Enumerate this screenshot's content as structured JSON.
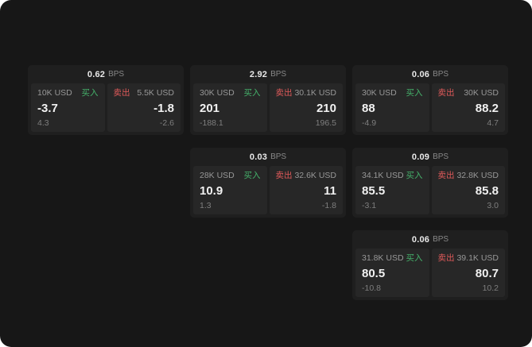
{
  "labels": {
    "bps": "BPS",
    "buy": "买入",
    "sell": "卖出"
  },
  "colors": {
    "background": "#171717",
    "card": "#1f1f1f",
    "panel": "#272727",
    "buy_green": "#45b26b",
    "sell_red": "#e05a5a",
    "text_primary": "#f1f1f1",
    "text_muted": "#888888"
  },
  "cards": [
    {
      "bps": "0.62",
      "buy": {
        "size": "10K USD",
        "price": "-3.7",
        "delta": "4.3"
      },
      "sell": {
        "size": "5.5K USD",
        "price": "-1.8",
        "delta": "-2.6"
      }
    },
    {
      "bps": "2.92",
      "buy": {
        "size": "30K USD",
        "price": "201",
        "delta": "-188.1"
      },
      "sell": {
        "size": "30.1K USD",
        "price": "210",
        "delta": "196.5"
      }
    },
    {
      "bps": "0.06",
      "buy": {
        "size": "30K USD",
        "price": "88",
        "delta": "-4.9"
      },
      "sell": {
        "size": "30K USD",
        "price": "88.2",
        "delta": "4.7"
      }
    },
    {
      "bps": "0.03",
      "buy": {
        "size": "28K USD",
        "price": "10.9",
        "delta": "1.3"
      },
      "sell": {
        "size": "32.6K USD",
        "price": "11",
        "delta": "-1.8"
      }
    },
    {
      "bps": "0.09",
      "buy": {
        "size": "34.1K USD",
        "price": "85.5",
        "delta": "-3.1"
      },
      "sell": {
        "size": "32.8K USD",
        "price": "85.8",
        "delta": "3.0"
      }
    },
    {
      "bps": "0.06",
      "buy": {
        "size": "31.8K USD",
        "price": "80.5",
        "delta": "-10.8"
      },
      "sell": {
        "size": "39.1K USD",
        "price": "80.7",
        "delta": "10.2"
      }
    }
  ]
}
